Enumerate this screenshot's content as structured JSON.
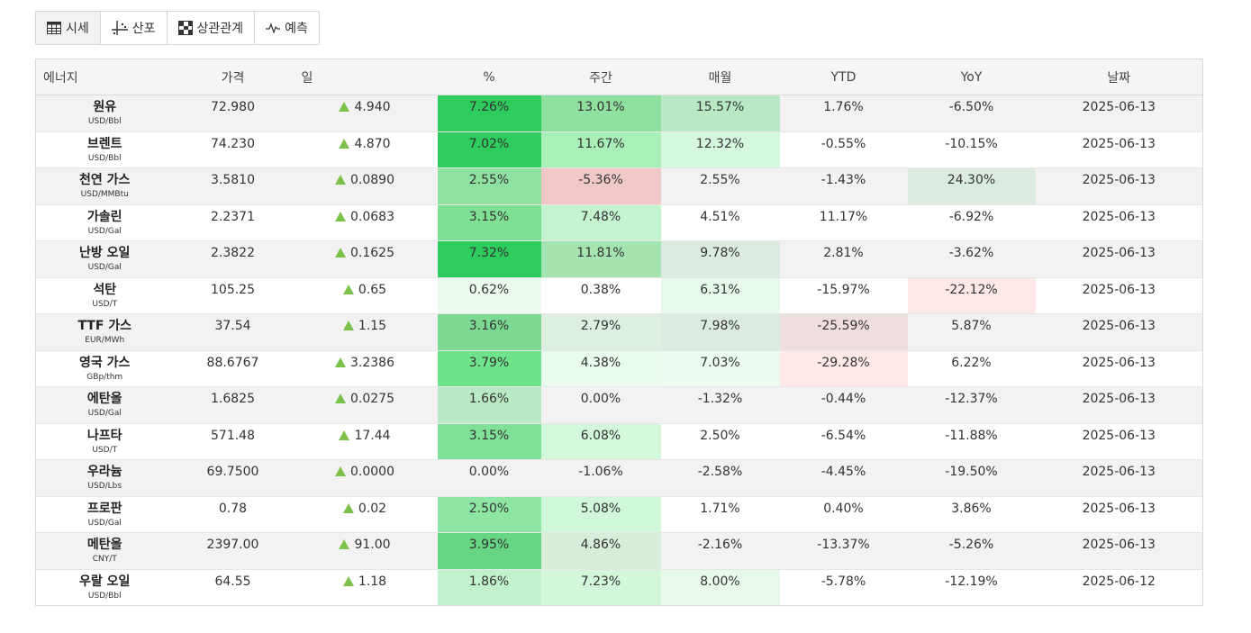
{
  "tabs": [
    {
      "label": "시세",
      "icon": "table-icon",
      "active": true
    },
    {
      "label": "산포",
      "icon": "scatter-icon",
      "active": false
    },
    {
      "label": "상관관계",
      "icon": "correlation-icon",
      "active": false
    },
    {
      "label": "예측",
      "icon": "forecast-icon",
      "active": false
    }
  ],
  "columns": [
    "에너지",
    "가격",
    "일",
    "%",
    "주간",
    "매월",
    "YTD",
    "YoY",
    "날짜"
  ],
  "colors": {
    "up_arrow": "#7cc24a"
  },
  "rows": [
    {
      "name": "원유",
      "unit": "USD/Bbl",
      "price": "72.980",
      "day": "4.940",
      "pct": "7.26%",
      "week": "13.01%",
      "month": "15.57%",
      "ytd": "1.76%",
      "yoy": "-6.50%",
      "date": "2025-06-13"
    },
    {
      "name": "브렌트",
      "unit": "USD/Bbl",
      "price": "74.230",
      "day": "4.870",
      "pct": "7.02%",
      "week": "11.67%",
      "month": "12.32%",
      "ytd": "-0.55%",
      "yoy": "-10.15%",
      "date": "2025-06-13"
    },
    {
      "name": "천연 가스",
      "unit": "USD/MMBtu",
      "price": "3.5810",
      "day": "0.0890",
      "pct": "2.55%",
      "week": "-5.36%",
      "month": "2.55%",
      "ytd": "-1.43%",
      "yoy": "24.30%",
      "date": "2025-06-13"
    },
    {
      "name": "가솔린",
      "unit": "USD/Gal",
      "price": "2.2371",
      "day": "0.0683",
      "pct": "3.15%",
      "week": "7.48%",
      "month": "4.51%",
      "ytd": "11.17%",
      "yoy": "-6.92%",
      "date": "2025-06-13"
    },
    {
      "name": "난방 오일",
      "unit": "USD/Gal",
      "price": "2.3822",
      "day": "0.1625",
      "pct": "7.32%",
      "week": "11.81%",
      "month": "9.78%",
      "ytd": "2.81%",
      "yoy": "-3.62%",
      "date": "2025-06-13"
    },
    {
      "name": "석탄",
      "unit": "USD/T",
      "price": "105.25",
      "day": "0.65",
      "pct": "0.62%",
      "week": "0.38%",
      "month": "6.31%",
      "ytd": "-15.97%",
      "yoy": "-22.12%",
      "date": "2025-06-13"
    },
    {
      "name": "TTF 가스",
      "unit": "EUR/MWh",
      "price": "37.54",
      "day": "1.15",
      "pct": "3.16%",
      "week": "2.79%",
      "month": "7.98%",
      "ytd": "-25.59%",
      "yoy": "5.87%",
      "date": "2025-06-13"
    },
    {
      "name": "영국 가스",
      "unit": "GBp/thm",
      "price": "88.6767",
      "day": "3.2386",
      "pct": "3.79%",
      "week": "4.38%",
      "month": "7.03%",
      "ytd": "-29.28%",
      "yoy": "6.22%",
      "date": "2025-06-13"
    },
    {
      "name": "에탄올",
      "unit": "USD/Gal",
      "price": "1.6825",
      "day": "0.0275",
      "pct": "1.66%",
      "week": "0.00%",
      "month": "-1.32%",
      "ytd": "-0.44%",
      "yoy": "-12.37%",
      "date": "2025-06-13"
    },
    {
      "name": "나프타",
      "unit": "USD/T",
      "price": "571.48",
      "day": "17.44",
      "pct": "3.15%",
      "week": "6.08%",
      "month": "2.50%",
      "ytd": "-6.54%",
      "yoy": "-11.88%",
      "date": "2025-06-13"
    },
    {
      "name": "우라늄",
      "unit": "USD/Lbs",
      "price": "69.7500",
      "day": "0.0000",
      "pct": "0.00%",
      "week": "-1.06%",
      "month": "-2.58%",
      "ytd": "-4.45%",
      "yoy": "-19.50%",
      "date": "2025-06-13"
    },
    {
      "name": "프로판",
      "unit": "USD/Gal",
      "price": "0.78",
      "day": "0.02",
      "pct": "2.50%",
      "week": "5.08%",
      "month": "1.71%",
      "ytd": "0.40%",
      "yoy": "3.86%",
      "date": "2025-06-13"
    },
    {
      "name": "메탄올",
      "unit": "CNY/T",
      "price": "2397.00",
      "day": "91.00",
      "pct": "3.95%",
      "week": "4.86%",
      "month": "-2.16%",
      "ytd": "-13.37%",
      "yoy": "-5.26%",
      "date": "2025-06-13"
    },
    {
      "name": "우랄 오일",
      "unit": "USD/Bbl",
      "price": "64.55",
      "day": "1.18",
      "pct": "1.86%",
      "week": "7.23%",
      "month": "8.00%",
      "ytd": "-5.78%",
      "yoy": "-12.19%",
      "date": "2025-06-12"
    }
  ],
  "heat_colors": {
    "pct": [
      "#2ecc5c",
      "#2ecc5c",
      "#8fe1a2",
      "#7fdf94",
      "#2ecc5c",
      "#ecfaee",
      "#7cd992",
      "#6fe28c",
      "#b8e8c4",
      "#7fe198",
      "#f2f2f2",
      "#8ee6a4",
      "#66d684",
      "#c2f2cd"
    ],
    "week": [
      "#8fdf9f",
      "#a8efb8",
      "#f0c8c8",
      "#c4f4cf",
      "#a4e4b0",
      "#ffffff",
      "#dcefe0",
      "#e9fbed",
      "#f2f2f2",
      "#d4f8dc",
      "#f2f2f2",
      "#d0f7da",
      "#d7ecd9",
      "#d2f7da"
    ],
    "month": [
      "#b8e8c4",
      "#d6f8df",
      "#f2f2f2",
      "#ffffff",
      "#dcebe0",
      "#e6f9ea",
      "#dcebe0",
      "#ebfbef",
      "#f2f2f2",
      "#ffffff",
      "#f2f2f2",
      "#ffffff",
      "#f2f2f2",
      "#e8f9ec"
    ],
    "ytd": [
      "#f2f2f2",
      "#ffffff",
      "#f2f2f2",
      "#ffffff",
      "#f2f2f2",
      "#ffffff",
      "#efdede",
      "#ffe8e8",
      "#f2f2f2",
      "#ffffff",
      "#f2f2f2",
      "#ffffff",
      "#f2f2f2",
      "#ffffff"
    ],
    "yoy": [
      "#f2f2f2",
      "#ffffff",
      "#dcebe0",
      "#ffffff",
      "#f2f2f2",
      "#ffe8e8",
      "#f2f2f2",
      "#ffffff",
      "#f2f2f2",
      "#ffffff",
      "#f2f2f2",
      "#ffffff",
      "#f2f2f2",
      "#ffffff"
    ]
  }
}
